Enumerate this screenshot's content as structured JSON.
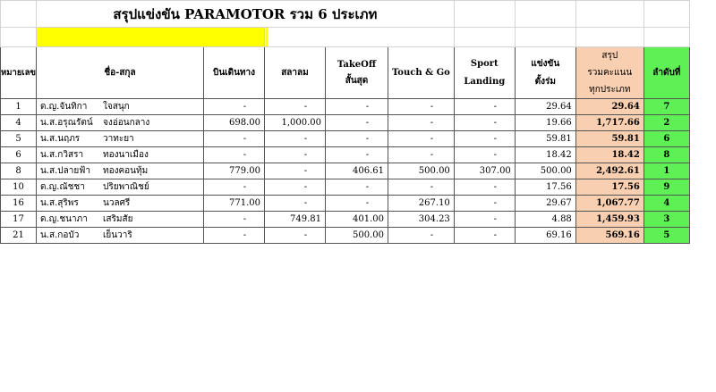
{
  "title": "สรุปแข่งขัน  PARAMOTOR รวม 6 ประเภท",
  "headers": {
    "number": "หมายเลข",
    "name": "ชื่อ-สกุล",
    "cross_country": "บินเดินทาง",
    "slalom": "สลาลม",
    "takeoff_1": "TakeOff",
    "takeoff_2": "สั้นสุด",
    "touch_go": "Touch & Go",
    "sport_1": "Sport",
    "sport_2": "Landing",
    "participate_1": "แข่งขัน",
    "participate_2": "ตั้งร่ม",
    "total_1": "สรุป",
    "total_2": "รวมคะแนน",
    "total_3": "ทุกประเภท",
    "rank": "ลำดับที่"
  },
  "colors": {
    "title_bar": "#ffff00",
    "total": "#f8cfb0",
    "rank": "#5ff055"
  },
  "rows": [
    {
      "no": "1",
      "first": "ด.ญ.จันทิกา",
      "last": "ใจสนุก",
      "cc": "-",
      "sl": "-",
      "to": "-",
      "tg": "-",
      "sp": "-",
      "pa": "29.64",
      "total": "29.64",
      "rank": "7"
    },
    {
      "no": "4",
      "first": "น.ส.อรุณรัตน์",
      "last": "จงอ่อนกลาง",
      "cc": "698.00",
      "sl": "1,000.00",
      "to": "-",
      "tg": "-",
      "sp": "-",
      "pa": "19.66",
      "total": "1,717.66",
      "rank": "2"
    },
    {
      "no": "5",
      "first": "น.ส.นฤภร",
      "last": "วาทะยา",
      "cc": "-",
      "sl": "-",
      "to": "-",
      "tg": "-",
      "sp": "-",
      "pa": "59.81",
      "total": "59.81",
      "rank": "6"
    },
    {
      "no": "6",
      "first": "น.ส.กวิสรา",
      "last": "ทองนาเมือง",
      "cc": "-",
      "sl": "-",
      "to": "-",
      "tg": "-",
      "sp": "-",
      "pa": "18.42",
      "total": "18.42",
      "rank": "8"
    },
    {
      "no": "8",
      "first": "น.ส.ปลายฟ้า",
      "last": "ทองคอนทุ้ม",
      "cc": "779.00",
      "sl": "-",
      "to": "406.61",
      "tg": "500.00",
      "sp": "307.00",
      "pa": "500.00",
      "total": "2,492.61",
      "rank": "1"
    },
    {
      "no": "10",
      "first": "ด.ญ.ณัชชา",
      "last": "ปริยพาณิชย์",
      "cc": "-",
      "sl": "-",
      "to": "-",
      "tg": "-",
      "sp": "-",
      "pa": "17.56",
      "total": "17.56",
      "rank": "9"
    },
    {
      "no": "16",
      "first": "น.ส.สุริพร",
      "last": "นวลศรี",
      "cc": "771.00",
      "sl": "-",
      "to": "-",
      "tg": "267.10",
      "sp": "-",
      "pa": "29.67",
      "total": "1,067.77",
      "rank": "4"
    },
    {
      "no": "17",
      "first": "ด.ญ.ชนาภา",
      "last": "เสริมสัย",
      "cc": "-",
      "sl": "749.81",
      "to": "401.00",
      "tg": "304.23",
      "sp": "-",
      "pa": "4.88",
      "total": "1,459.93",
      "rank": "3"
    },
    {
      "no": "21",
      "first": "น.ส.กอบัว",
      "last": "เย็นวาริ",
      "cc": "-",
      "sl": "-",
      "to": "500.00",
      "tg": "-",
      "sp": "-",
      "pa": "69.16",
      "total": "569.16",
      "rank": "5"
    }
  ]
}
